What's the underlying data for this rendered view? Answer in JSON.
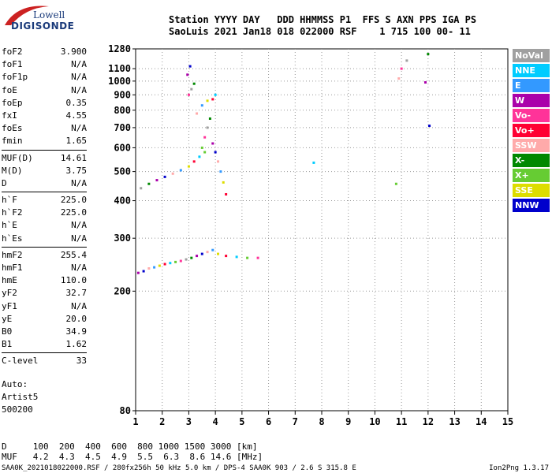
{
  "logo": {
    "line1": "Lowell",
    "line2": "DIGISONDE"
  },
  "header": {
    "line1": "Station YYYY DAY   DDD HHMMSS P1  FFS S AXN PPS IGA PS",
    "line2": "SaoLuis 2021 Jan18 018 022000 RSF    1 715 100 00- 11"
  },
  "params": [
    {
      "label": "foF2",
      "value": "3.900"
    },
    {
      "label": "foF1",
      "value": "N/A"
    },
    {
      "label": "foF1p",
      "value": "N/A"
    },
    {
      "label": "foE",
      "value": "N/A"
    },
    {
      "label": "foEp",
      "value": "0.35"
    },
    {
      "label": "fxI",
      "value": "4.55"
    },
    {
      "label": "foEs",
      "value": "N/A"
    },
    {
      "label": "fmin",
      "value": "1.65"
    },
    {
      "label": "MUF(D)",
      "value": "14.61"
    },
    {
      "label": "M(D)",
      "value": "3.75"
    },
    {
      "label": "D",
      "value": "N/A"
    },
    {
      "label": "h`F",
      "value": "225.0"
    },
    {
      "label": "h`F2",
      "value": "225.0"
    },
    {
      "label": "h`E",
      "value": "N/A"
    },
    {
      "label": "h`Es",
      "value": "N/A"
    },
    {
      "label": "hmF2",
      "value": "255.4"
    },
    {
      "label": "hmF1",
      "value": "N/A"
    },
    {
      "label": "hmE",
      "value": "110.0"
    },
    {
      "label": "yF2",
      "value": "32.7"
    },
    {
      "label": "yF1",
      "value": "N/A"
    },
    {
      "label": "yE",
      "value": "20.0"
    },
    {
      "label": "B0",
      "value": "34.9"
    },
    {
      "label": "B1",
      "value": "1.62"
    },
    {
      "label": "C-level",
      "value": "33"
    }
  ],
  "auto": {
    "line1": "Auto:",
    "line2": "Artist5",
    "line3": "500200"
  },
  "legend": [
    {
      "label": "NoVal",
      "color": "#a0a0a0"
    },
    {
      "label": "NNE",
      "color": "#00ccff"
    },
    {
      "label": "E",
      "color": "#3399ff"
    },
    {
      "label": "W",
      "color": "#aa00aa"
    },
    {
      "label": "Vo-",
      "color": "#ff3399"
    },
    {
      "label": "Vo+",
      "color": "#ff0033"
    },
    {
      "label": "SSW",
      "color": "#ffaaaa"
    },
    {
      "label": "X-",
      "color": "#008800"
    },
    {
      "label": "X+",
      "color": "#66cc33"
    },
    {
      "label": "SSE",
      "color": "#dddd00"
    },
    {
      "label": "NNW",
      "color": "#0000cc"
    }
  ],
  "muf_table": {
    "line1": "D     100  200  400  600  800 1000 1500 3000 [km]",
    "line2": "MUF   4.2  4.3  4.5  4.9  5.5  6.3  8.6 14.6 [MHz]"
  },
  "footer": {
    "left": "SAA0K_2021018022000.RSF / 280fx256h 50 kHz 5.0 km / DPS-4 SAA0K 903 / 2.6 S 315.8 E",
    "right": "Ion2Png 1.3.17"
  },
  "chart_data": {
    "type": "scatter",
    "title": "",
    "xlabel": "",
    "ylabel": "",
    "xlim": [
      1,
      15
    ],
    "ylim": [
      80,
      1280
    ],
    "xticks": [
      1,
      2,
      3,
      4,
      5,
      6,
      7,
      8,
      9,
      10,
      11,
      12,
      13,
      14,
      15
    ],
    "yticks": [
      80,
      200,
      300,
      400,
      500,
      600,
      700,
      800,
      900,
      1000,
      1100,
      1280
    ],
    "y_scale": "log",
    "grid": true,
    "legend_position": "right",
    "series": [
      {
        "points": [
          [
            1.1,
            230
          ],
          [
            1.3,
            233
          ],
          [
            1.5,
            238
          ],
          [
            1.7,
            240
          ],
          [
            1.9,
            243
          ],
          [
            2.1,
            246
          ],
          [
            2.3,
            248
          ],
          [
            2.5,
            250
          ],
          [
            2.7,
            252
          ],
          [
            2.9,
            255
          ],
          [
            3.1,
            258
          ],
          [
            3.3,
            262
          ],
          [
            3.5,
            266
          ],
          [
            3.7,
            270
          ],
          [
            3.9,
            274
          ],
          [
            4.1,
            266
          ],
          [
            4.4,
            262
          ],
          [
            4.8,
            260
          ],
          [
            5.2,
            258
          ],
          [
            5.6,
            258
          ],
          [
            1.2,
            440
          ],
          [
            1.5,
            455
          ],
          [
            1.8,
            468
          ],
          [
            2.1,
            480
          ],
          [
            2.4,
            492
          ],
          [
            2.7,
            505
          ],
          [
            3.0,
            520
          ],
          [
            3.2,
            540
          ],
          [
            3.4,
            560
          ],
          [
            3.6,
            580
          ],
          [
            3.0,
            900
          ],
          [
            3.1,
            940
          ],
          [
            3.2,
            980
          ],
          [
            2.95,
            1050
          ],
          [
            3.05,
            1120
          ],
          [
            3.3,
            780
          ],
          [
            3.5,
            830
          ],
          [
            3.7,
            860
          ],
          [
            3.9,
            870
          ],
          [
            4.0,
            900
          ],
          [
            3.5,
            600
          ],
          [
            3.6,
            650
          ],
          [
            3.7,
            700
          ],
          [
            3.8,
            750
          ],
          [
            3.9,
            620
          ],
          [
            4.0,
            580
          ],
          [
            4.1,
            540
          ],
          [
            4.2,
            500
          ],
          [
            4.3,
            460
          ],
          [
            4.4,
            420
          ],
          [
            7.7,
            535
          ],
          [
            10.8,
            455
          ],
          [
            11.0,
            1100
          ],
          [
            11.2,
            1170
          ],
          [
            12.0,
            1230
          ],
          [
            11.9,
            990
          ],
          [
            12.05,
            710
          ],
          [
            10.9,
            1020
          ]
        ]
      }
    ]
  }
}
